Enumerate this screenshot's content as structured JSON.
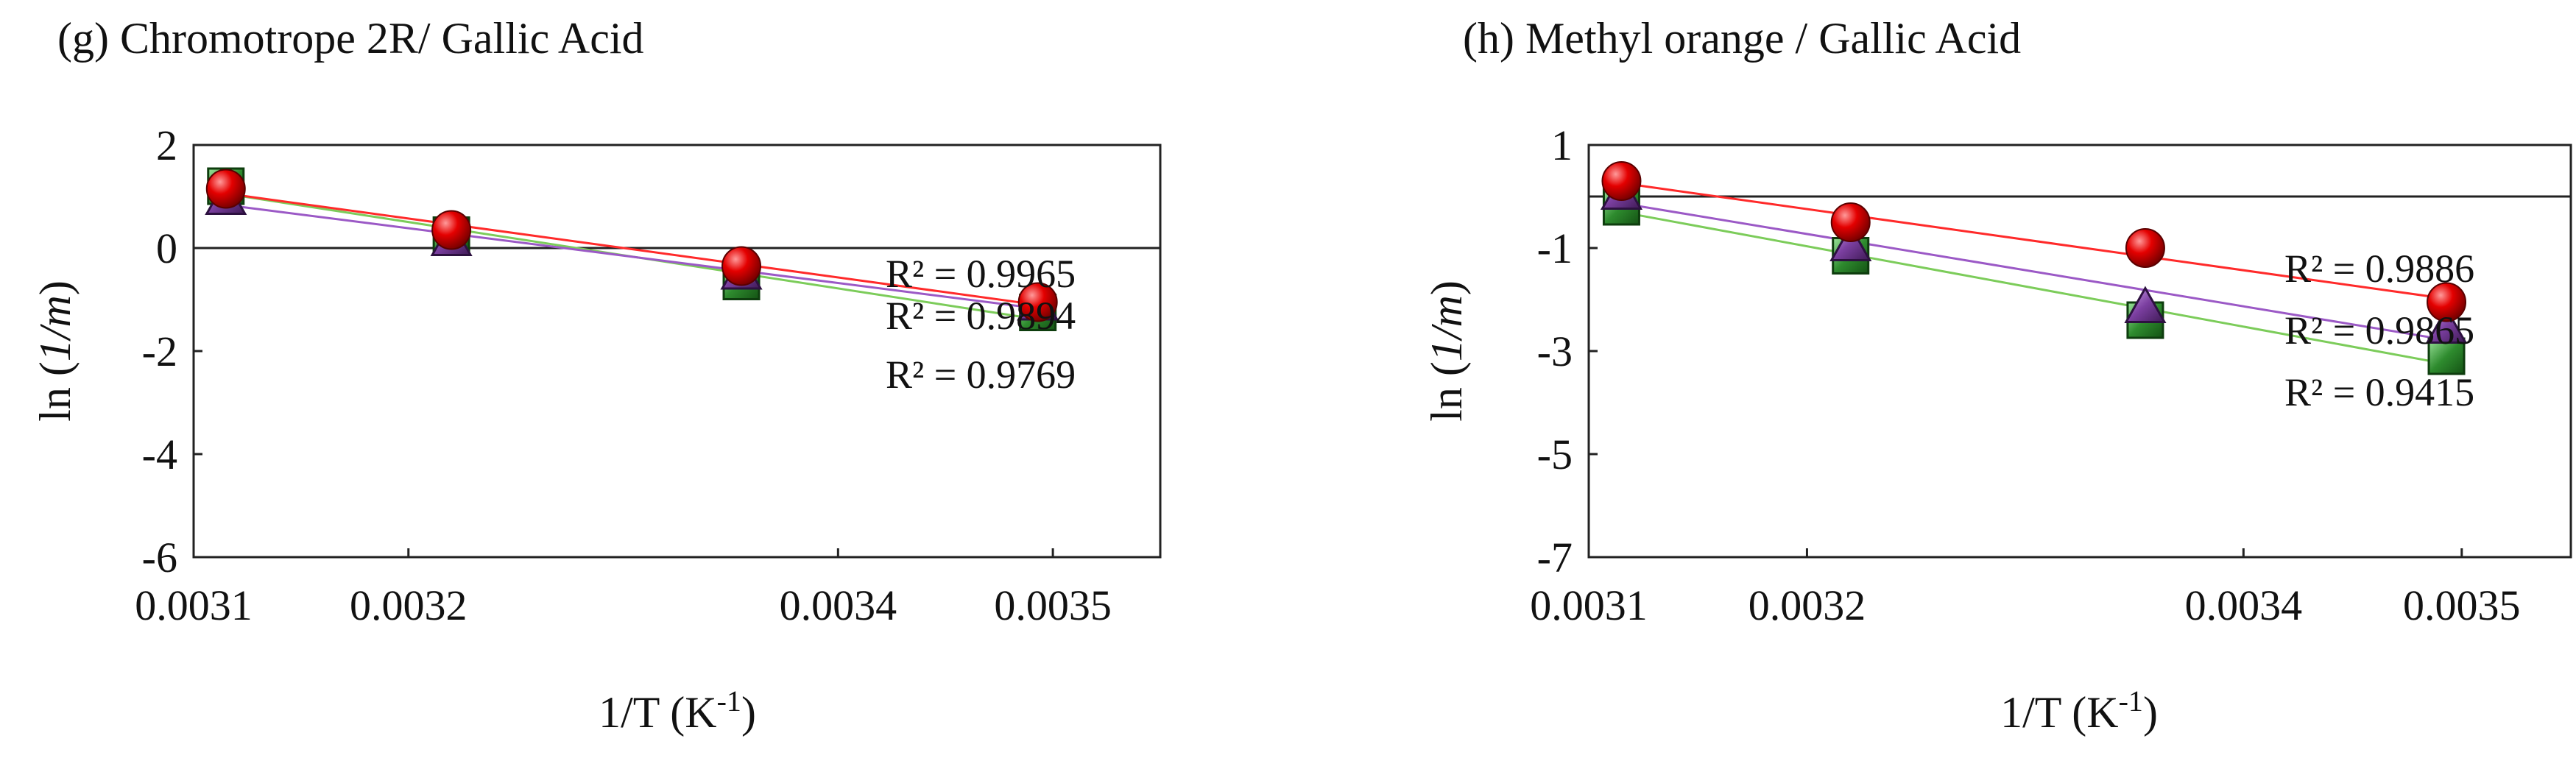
{
  "chart_data": [
    {
      "type": "scatter",
      "title": "(g) Chromotrope  2R/ Gallic Acid",
      "xlabel": "1/T (K",
      "xlabel_sup": "-1",
      "xlabel_end": ")",
      "ylabel_prefix": "ln (",
      "ylabel_italic": "1/m",
      "ylabel_suffix": ")",
      "xlim": [
        0.0031,
        0.00355
      ],
      "ylim": [
        -6,
        2
      ],
      "xticks": [
        0.0031,
        0.0032,
        0.0034,
        0.0035
      ],
      "xtick_labels": [
        "0.0031",
        "0.0032",
        "0.0034",
        "0.0035"
      ],
      "yticks": [
        2,
        0,
        -2,
        -4,
        -6
      ],
      "ytick_labels": [
        "2",
        "0",
        "-2",
        "-4",
        "-6"
      ],
      "grid": false,
      "zero_line": true,
      "series": [
        {
          "marker": "square",
          "color": "#2e8b2e",
          "x": [
            0.003115,
            0.00322,
            0.003355,
            0.003493
          ],
          "y": [
            1.2,
            0.25,
            -0.65,
            -1.25
          ]
        },
        {
          "marker": "triangle",
          "color": "#7b3fa0",
          "x": [
            0.003115,
            0.00322,
            0.003355,
            0.003493
          ],
          "y": [
            0.95,
            0.15,
            -0.5,
            -1.1
          ]
        },
        {
          "marker": "circle",
          "color": "#e00000",
          "x": [
            0.003115,
            0.00322,
            0.003355,
            0.003493
          ],
          "y": [
            1.15,
            0.35,
            -0.35,
            -1.05
          ]
        }
      ],
      "annotations": [
        "R² = 0.9965",
        "R² = 0.9894",
        "R² = 0.9769"
      ]
    },
    {
      "type": "scatter",
      "title": "(h) Methyl  orange  / Gallic Acid",
      "xlabel": "1/T (K",
      "xlabel_sup": "-1",
      "xlabel_end": ")",
      "ylabel_prefix": "ln (",
      "ylabel_italic": "1/m",
      "ylabel_suffix": ")",
      "xlim": [
        0.0031,
        0.00355
      ],
      "ylim": [
        -7,
        1
      ],
      "xticks": [
        0.0031,
        0.0032,
        0.0034,
        0.0035
      ],
      "xtick_labels": [
        "0.0031",
        "0.0032",
        "0.0034",
        "0.0035"
      ],
      "yticks": [
        1,
        -1,
        -3,
        -5,
        -7
      ],
      "ytick_labels": [
        "1",
        "-1",
        "-3",
        "-5",
        "-7"
      ],
      "grid": false,
      "zero_line": true,
      "series": [
        {
          "marker": "square",
          "color": "#2e8b2e",
          "x": [
            0.003115,
            0.00322,
            0.003355,
            0.003493
          ],
          "y": [
            -0.2,
            -1.15,
            -2.4,
            -3.1
          ]
        },
        {
          "marker": "triangle",
          "color": "#7b3fa0",
          "x": [
            0.003115,
            0.00322,
            0.003355,
            0.003493
          ],
          "y": [
            0.05,
            -0.95,
            -2.15,
            -2.55
          ]
        },
        {
          "marker": "circle",
          "color": "#e00000",
          "x": [
            0.003115,
            0.00322,
            0.003355,
            0.003493
          ],
          "y": [
            0.3,
            -0.5,
            -1.0,
            -2.05
          ]
        }
      ],
      "annotations": [
        "R² = 0.9886",
        "R² = 0.9865",
        "R² = 0.9415"
      ]
    }
  ]
}
